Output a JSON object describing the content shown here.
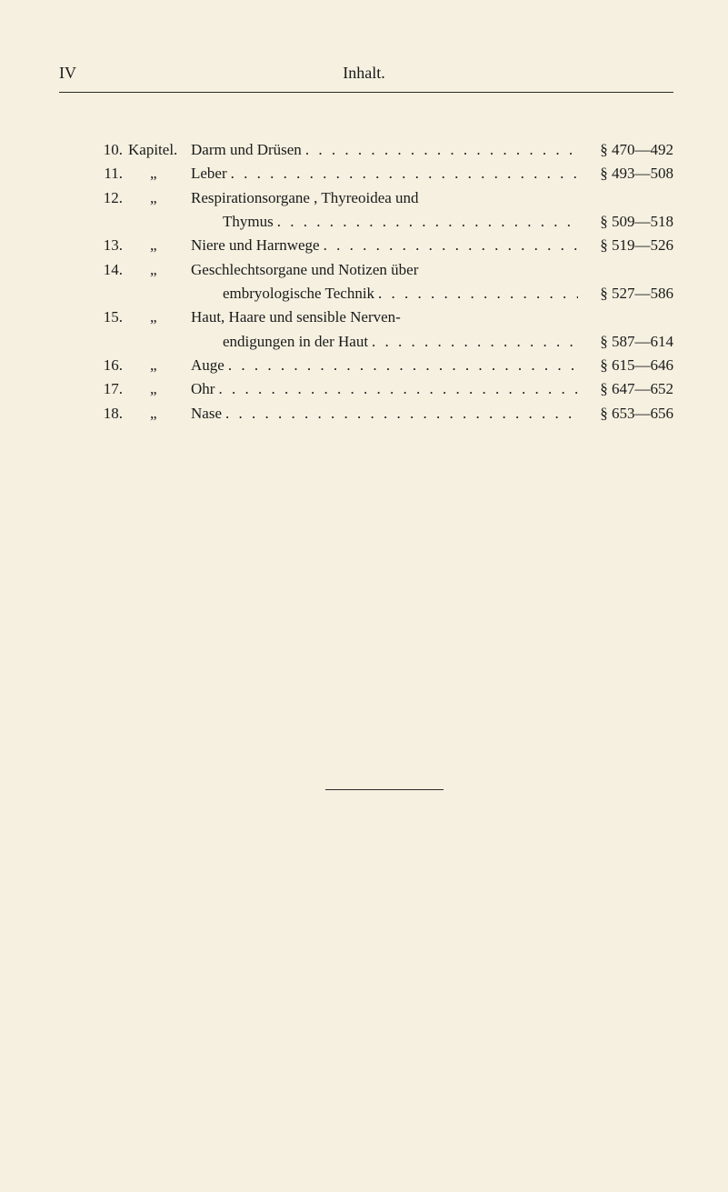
{
  "header": {
    "page_number": "IV",
    "section_title": "Inhalt."
  },
  "toc": [
    {
      "num": "10.",
      "label": "Kapitel.",
      "title": "Darm und Drüsen",
      "sections": "§ 470—492",
      "has_dots": true
    },
    {
      "num": "11.",
      "label": "„",
      "title": "Leber",
      "sections": "§ 493—508",
      "has_dots": true
    },
    {
      "num": "12.",
      "label": "„",
      "title": "Respirationsorgane , Thyreoidea und",
      "sections": "",
      "has_dots": false,
      "continuation": {
        "title": "Thymus",
        "sections": "§ 509—518",
        "has_dots": true
      }
    },
    {
      "num": "13.",
      "label": "„",
      "title": "Niere und Harnwege",
      "sections": "§ 519—526",
      "has_dots": true
    },
    {
      "num": "14.",
      "label": "„",
      "title": "Geschlechtsorgane und Notizen über",
      "sections": "",
      "has_dots": false,
      "continuation": {
        "title": "embryologische Technik",
        "sections": "§ 527—586",
        "has_dots": true
      }
    },
    {
      "num": "15.",
      "label": "„",
      "title": "Haut, Haare und sensible Nerven-",
      "sections": "",
      "has_dots": false,
      "continuation": {
        "title": "endigungen in der Haut",
        "sections": "§ 587—614",
        "has_dots": true
      }
    },
    {
      "num": "16.",
      "label": "„",
      "title": "Auge",
      "sections": "§ 615—646",
      "has_dots": true
    },
    {
      "num": "17.",
      "label": "„",
      "title": "Ohr",
      "sections": "§ 647—652",
      "has_dots": true
    },
    {
      "num": "18.",
      "label": "„",
      "title": "Nase",
      "sections": "§ 653—656",
      "has_dots": true
    }
  ],
  "styling": {
    "background_color": "#f5f0e0",
    "text_color": "#1a1a1a",
    "font_family": "Georgia, Times New Roman, serif",
    "base_fontsize": 17,
    "header_fontsize": 18,
    "line_height": 1.55,
    "dot_char": "."
  }
}
